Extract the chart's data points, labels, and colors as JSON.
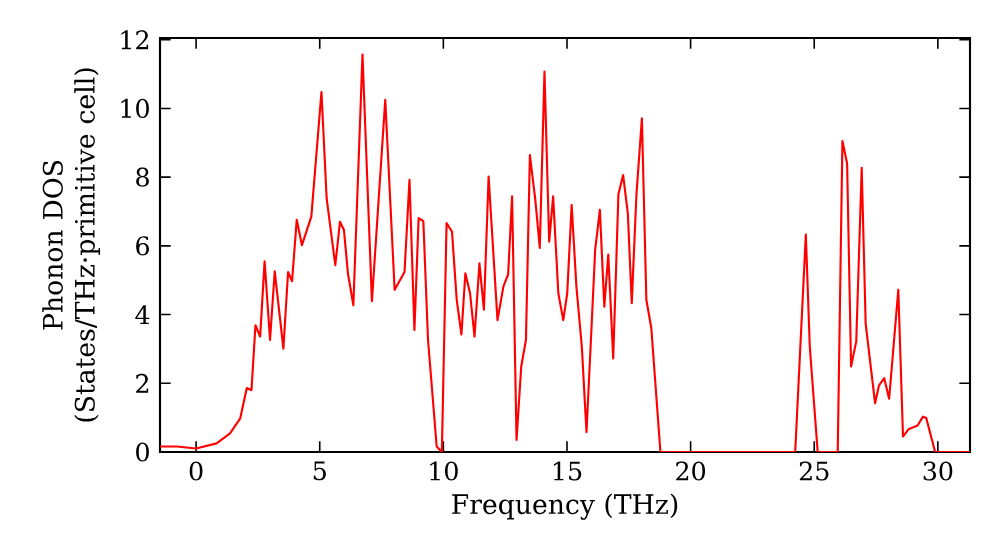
{
  "chart_data": {
    "type": "line",
    "xlabel": "Frequency (THz)",
    "ylabel": "Phonon DOS (States/THz·primitive cell)",
    "x": [
      -1.46,
      -0.78,
      0,
      0.83,
      1.37,
      1.78,
      2.05,
      2.24,
      2.4,
      2.59,
      2.77,
      2.99,
      3.18,
      3.53,
      3.72,
      3.88,
      4.07,
      4.28,
      4.66,
      5.07,
      5.28,
      5.63,
      5.82,
      5.98,
      6.14,
      6.36,
      6.73,
      7.11,
      7.65,
      8.03,
      8.43,
      8.63,
      8.83,
      9.0,
      9.19,
      9.38,
      9.73,
      9.94,
      10.13,
      10.35,
      10.54,
      10.73,
      10.89,
      11.08,
      11.26,
      11.46,
      11.64,
      11.83,
      12.19,
      12.43,
      12.62,
      12.78,
      12.96,
      13.15,
      13.34,
      13.5,
      13.72,
      13.9,
      14.09,
      14.28,
      14.44,
      14.65,
      14.85,
      15.01,
      15.19,
      15.38,
      15.6,
      15.79,
      15.98,
      16.14,
      16.33,
      16.51,
      16.67,
      16.87,
      17.08,
      17.27,
      17.46,
      17.62,
      17.81,
      18.03,
      18.21,
      18.41,
      18.78,
      21.5,
      24.23,
      24.66,
      24.82,
      25.14,
      25.95,
      26.14,
      26.33,
      26.49,
      26.7,
      26.92,
      27.08,
      27.46,
      27.62,
      27.83,
      28.03,
      28.4,
      28.59,
      28.81,
      29.18,
      29.4,
      29.53,
      29.89,
      31.3
    ],
    "values": [
      0.16,
      0.16,
      0.1,
      0.25,
      0.54,
      0.97,
      1.86,
      1.8,
      3.69,
      3.36,
      5.55,
      3.26,
      5.26,
      3.01,
      5.24,
      4.97,
      6.76,
      6.02,
      6.85,
      10.48,
      7.38,
      5.44,
      6.7,
      6.46,
      5.2,
      4.27,
      11.57,
      4.39,
      10.25,
      4.72,
      5.24,
      7.92,
      3.55,
      6.81,
      6.72,
      3.26,
      0.16,
      0,
      6.66,
      6.41,
      4.43,
      3.42,
      5.2,
      4.62,
      3.36,
      5.49,
      4.14,
      8.02,
      3.84,
      4.82,
      5.17,
      7.44,
      0.35,
      2.49,
      3.26,
      8.64,
      7.34,
      5.94,
      11.07,
      6.12,
      7.44,
      4.62,
      3.84,
      4.62,
      7.19,
      4.82,
      3.07,
      0.58,
      3.45,
      5.88,
      7.05,
      4.23,
      5.75,
      2.72,
      7.5,
      8.06,
      6.95,
      4.33,
      7.5,
      9.71,
      4.43,
      3.61,
      0,
      0,
      0,
      6.33,
      3.07,
      0,
      0,
      9.05,
      8.4,
      2.49,
      3.22,
      8.27,
      3.74,
      1.42,
      1.94,
      2.15,
      1.55,
      4.72,
      0.45,
      0.66,
      0.77,
      1.03,
      0.99,
      0,
      0
    ],
    "color": "#ff0000",
    "xlim": [
      -1.46,
      31.3
    ],
    "ylim": [
      0,
      12.05
    ],
    "xticks": [
      0,
      5,
      10,
      15,
      20,
      25,
      30
    ],
    "yticks": [
      0,
      2,
      4,
      6,
      8,
      10,
      12
    ]
  }
}
